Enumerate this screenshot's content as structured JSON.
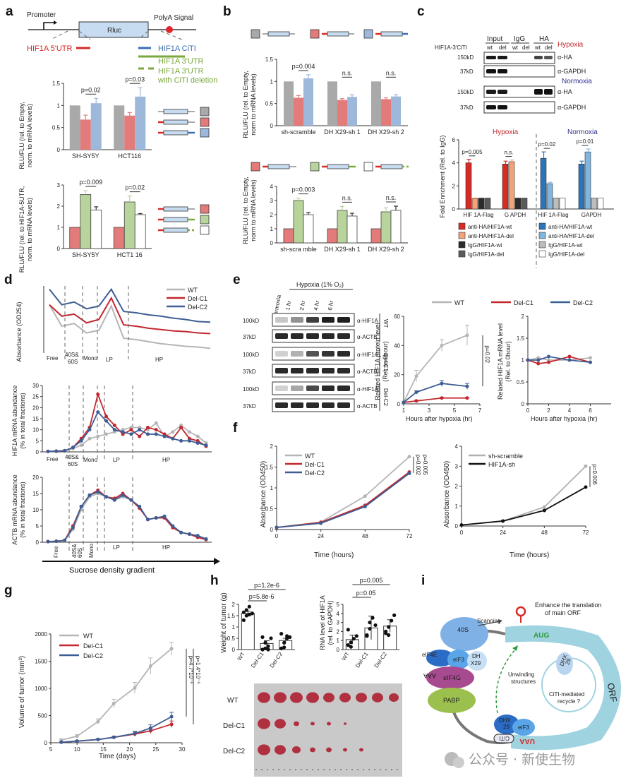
{
  "panels": {
    "a": "a",
    "b": "b",
    "c": "c",
    "d": "d",
    "e": "e",
    "f": "f",
    "g": "g",
    "h": "h",
    "i": "i"
  },
  "colors": {
    "gray": "#a9a9a9",
    "red": "#e37b7b",
    "blue": "#9db8db",
    "green": "#b8d49c",
    "white": "#ffffff",
    "line_wt": "#b5b5b5",
    "line_c1": "#c3282e",
    "line_c2": "#3d5e95",
    "c_red_dark": "#d62a25",
    "c_red_light": "#f3a27a",
    "c_black": "#2b2b2b",
    "c_darkgray": "#5a5a5a",
    "c_blue_dark": "#2b75b8",
    "c_blue_light": "#7fb6e0",
    "c_gray": "#bdbdbd"
  },
  "panel_a": {
    "promoter": "Promoter",
    "rluc": "Rluc",
    "polya": "PolyA Signal",
    "utr5": "HIF1A 5'UTR",
    "citi": "HIF1A CiTI",
    "utr3": "HIF1A 3'UTR",
    "utr3_del_1": "HIF1A 3'UTR",
    "utr3_del_2": "with CiTI deletion",
    "top_ylabel_1": "RLU/FLU (rel. to Empty,",
    "top_ylabel_2": "norm. to mRNA levels)",
    "bot_ylabel_1": "RLU/FLU (rel. to HIF1A-5UTR,",
    "bot_ylabel_2": "norm. to mRNA levels)"
  },
  "panel_b": {
    "top_ylabel_1": "RLU/FLU (rel. to Empty,",
    "top_ylabel_2": "norm to mRNA levels)",
    "bot_ylabel_1": "RLU/FLU (rel. to Empty,",
    "bot_ylabel_2": "norm to mRNA levels)"
  },
  "panel_c": {
    "input": "Input",
    "igg": "IgG",
    "ha": "HA",
    "row_label": "HIF1A-3'CiTI",
    "wt": "wt",
    "del": "del",
    "hypoxia": "Hypoxia",
    "normoxia": "Normoxia",
    "mw150": "150kD",
    "mw37": "37kD",
    "aha": "α-HA",
    "agapdh": "α-GAPDH",
    "ylabel": "Fold Enrichment (Rel. to IgG)",
    "chart_hypoxia": "Hypoxia",
    "chart_normoxia": "Normoxia",
    "legend": [
      "anti-HA/HIF1A-wt",
      "anti-HA/HIF1A-del",
      "IgG/HIF1A-wt",
      "IgG/HIF1A-del",
      "anti-HA/HIF1A-wt",
      "anti-HA/HIF1A-del",
      "IgG/HIF1A-wt",
      "IgG/HIF1A-del"
    ]
  },
  "panel_d": {
    "legend": [
      "WT",
      "Del-C1",
      "Del-C2"
    ],
    "abs_ylabel": "Absorbance (OD254)",
    "fr": [
      "Free",
      "40S&",
      "60S",
      "Mono",
      "LP",
      "HP"
    ],
    "hif_ylabel_1": "HIF1A mRNA abundance",
    "hif_ylabel_2": "(% in total fractions)",
    "actb_ylabel_1": "ACTB mRNA abundance",
    "actb_ylabel_2": "(% in total fractions)",
    "xlabel": "Sucrose density gradient"
  },
  "panel_e": {
    "normoxia": "Normoxia",
    "hypoxia": "Hypoxia (1% O₂)",
    "times": [
      "1 hr",
      "2 hr",
      "4 hr",
      "6 hr"
    ],
    "mw100": "100kD",
    "mw37": "37kD",
    "ahif": "α-HIF1A",
    "aactb": "α-ACTB",
    "groups": [
      "WT",
      "Del-C1",
      "Del-C2"
    ],
    "legend": [
      "WT",
      "Del-C1",
      "Del-C2"
    ],
    "prot_ylabel_1": "Related HIF1A protein level",
    "prot_ylabel_2": "(Rel. to 0hour)",
    "mrna_ylabel_1": "Related HIF1A mRNA level",
    "mrna_ylabel_2": "(Rel. to 0hour)",
    "xlabel": "Hours after hypoxia (hr)",
    "pval": "p=0.02"
  },
  "panel_f": {
    "legend1": [
      "WT",
      "Del-C1",
      "Del-C2"
    ],
    "legend2": [
      "sh-scramble",
      "HIF1A-sh"
    ],
    "ylabel": "Absorbance (OD450)",
    "xlabel": "Time (hours)",
    "p1": "p=0.002",
    "p2": "p=0.005",
    "p3": "p=0.006"
  },
  "panel_g": {
    "legend": [
      "WT",
      "Del-C1",
      "Del-C2"
    ],
    "ylabel": "Volume of tumor (mm³)",
    "xlabel": "Time (days)",
    "p1": "p=4.7*10⁻⁶",
    "p2": "p=1.4*10⁻⁶"
  },
  "panel_h": {
    "p_top": "p=1.2e-6",
    "p_mid": "p=5.8e-6",
    "w_ylabel": "Weight of tumor (g)",
    "groups": [
      "WT",
      "Del-C1",
      "Del-C2"
    ],
    "r_ylabel_1": "RNA level of HIF1A",
    "r_ylabel_2": "(rel. to GAPDH)",
    "rp_top": "p=0.005",
    "rp_mid": "p=0.05",
    "photo_rows": [
      "WT",
      "Del-C1",
      "Del-C2"
    ]
  },
  "panel_i": {
    "enhance_1": "Enhance the translation",
    "enhance_2": "of main ORF",
    "scanning": "Scanning",
    "s40": "40S",
    "eif4e": "eIF4E",
    "eif3": "eIF3",
    "dhx_a": "DH",
    "dhx_b": "X29",
    "eif4g": "eIF4G",
    "pabp": "PABP",
    "aaa": "AAA",
    "unwinding_1": "Unwinding",
    "unwinding_2": "structures",
    "dhx29": "DHX",
    "dhx29_b": "29",
    "recycle": "CiTI-mediated",
    "recycle_2": "recycle ?",
    "citi": "CiTI",
    "aug": "AUG",
    "uaa": "UAA",
    "orf": "ORF"
  },
  "watermark": "公众号 · 新使生物",
  "chart_data": [
    {
      "id": "a_top",
      "type": "bar",
      "ylim": [
        0,
        1.5
      ],
      "yticks": [
        0,
        0.5,
        1,
        1.5
      ],
      "categories": [
        "SH-SY5Y",
        "HCT116"
      ],
      "series": [
        {
          "values": [
            1,
            1
          ]
        },
        {
          "values": [
            0.68,
            0.77
          ]
        },
        {
          "values": [
            1.05,
            1.2
          ]
        }
      ],
      "errors": [
        [
          0,
          0
        ],
        [
          0.1,
          0.07
        ],
        [
          0.11,
          0.2
        ]
      ],
      "annotations": [
        "p=0.02",
        "p=0.03"
      ]
    },
    {
      "id": "a_bot",
      "type": "bar",
      "ylim": [
        0,
        3
      ],
      "yticks": [
        0,
        1,
        2,
        3
      ],
      "categories": [
        "SH-SY5Y",
        "HCT1 16"
      ],
      "series": [
        {
          "values": [
            1,
            1
          ]
        },
        {
          "values": [
            2.55,
            2.2
          ]
        },
        {
          "values": [
            1.82,
            1.6
          ]
        }
      ],
      "errors": [
        [
          0,
          0
        ],
        [
          0.18,
          0.28
        ],
        [
          0.15,
          0.05
        ]
      ],
      "annotations": [
        "p=0.009",
        "p=0.02"
      ]
    },
    {
      "id": "b_top",
      "type": "bar",
      "ylim": [
        0,
        1.5
      ],
      "yticks": [
        0,
        0.5,
        1,
        1.5
      ],
      "categories": [
        "sh-scramble",
        "DH X29-sh 1",
        "DH X29-sh 2"
      ],
      "series": [
        {
          "values": [
            1,
            1,
            1
          ]
        },
        {
          "values": [
            0.63,
            0.58,
            0.6
          ]
        },
        {
          "values": [
            1.07,
            0.65,
            0.66
          ]
        }
      ],
      "errors": [
        [
          0,
          0,
          0
        ],
        [
          0.05,
          0.03,
          0.03
        ],
        [
          0.08,
          0.05,
          0.04
        ]
      ],
      "annotations": [
        "p=0.004",
        "n.s.",
        "n.s."
      ]
    },
    {
      "id": "b_bot",
      "type": "bar",
      "ylim": [
        0,
        4
      ],
      "yticks": [
        0,
        1,
        2,
        3,
        4
      ],
      "categories": [
        "sh-scra mble",
        "DH X29-sh 1",
        "DH X29-sh 2"
      ],
      "series": [
        {
          "values": [
            1,
            1,
            1
          ]
        },
        {
          "values": [
            3.0,
            2.3,
            2.2
          ]
        },
        {
          "values": [
            2.0,
            1.9,
            2.3
          ]
        }
      ],
      "errors": [
        [
          0,
          0,
          0
        ],
        [
          0.17,
          0.28,
          0.28
        ],
        [
          0.15,
          0.2,
          0.3
        ]
      ],
      "annotations": [
        "p=0.003",
        "n.s.",
        "n.s."
      ]
    },
    {
      "id": "c_chart",
      "type": "bar",
      "ylim": [
        0,
        6
      ],
      "yticks": [
        0,
        2,
        4,
        6
      ],
      "categories": [
        "HIF 1A-Flag",
        "G APDH",
        "HIF 1A-Flag",
        "GAPDH"
      ],
      "series": [
        {
          "values": [
            4.0,
            3.9,
            4.4,
            3.9
          ]
        },
        {
          "values": [
            0.9,
            4.1,
            2.2,
            4.95
          ]
        },
        {
          "values": [
            0.95,
            0.95,
            0.95,
            0.95
          ]
        },
        {
          "values": [
            0.95,
            0.95,
            0.95,
            0.95
          ]
        }
      ],
      "errors": [
        [
          0.3,
          0.25,
          0.55,
          0.25
        ],
        [
          0.05,
          0.15,
          0.12,
          0.25
        ],
        [
          0,
          0,
          0,
          0
        ],
        [
          0,
          0,
          0,
          0
        ]
      ],
      "annotations": [
        "p=0.005",
        "n.s.",
        "p=0.02",
        "p=0.01"
      ]
    },
    {
      "id": "d_abs",
      "type": "line",
      "series": [
        {
          "name": "WT",
          "values": [
            0.72,
            0.4,
            0.44,
            0.3,
            0.34,
            0.7,
            0.22,
            0.2,
            0.17,
            0.14,
            0.12,
            0.1,
            0.09,
            0.07
          ]
        },
        {
          "name": "Del-C1",
          "values": [
            0.72,
            0.55,
            0.58,
            0.45,
            0.5,
            0.82,
            0.42,
            0.4,
            0.37,
            0.35,
            0.33,
            0.32,
            0.3,
            0.29
          ]
        },
        {
          "name": "Del-C2",
          "values": [
            0.95,
            0.72,
            0.76,
            0.66,
            0.7,
            0.95,
            0.62,
            0.6,
            0.57,
            0.55,
            0.52,
            0.5,
            0.47,
            0.46
          ]
        }
      ]
    },
    {
      "id": "d_hif",
      "type": "line",
      "ylim": [
        0,
        30
      ],
      "yticks": [
        0,
        5,
        10,
        15,
        20,
        25,
        30
      ],
      "x": [
        1,
        2,
        3,
        4,
        5,
        6,
        7,
        8,
        9,
        10,
        11,
        12,
        13,
        14,
        15,
        16,
        17,
        18,
        19,
        20
      ],
      "series": [
        {
          "name": "WT",
          "values": [
            0.2,
            0.3,
            0.5,
            1.5,
            3,
            6,
            7,
            8,
            9,
            10,
            11,
            11,
            10,
            13,
            7,
            9,
            12,
            9,
            7,
            4
          ]
        },
        {
          "name": "Del-C1",
          "values": [
            0.2,
            0.3,
            0.5,
            2,
            6,
            11,
            26,
            16,
            12,
            8,
            10,
            7,
            11,
            10,
            8,
            6,
            11,
            6,
            5,
            2.5
          ]
        },
        {
          "name": "Del-C2",
          "values": [
            0.2,
            0.3,
            0.5,
            2,
            5,
            10,
            18,
            14,
            10,
            9,
            8,
            10,
            8,
            8,
            7,
            6,
            5,
            5,
            4,
            3
          ]
        }
      ]
    },
    {
      "id": "d_actb",
      "type": "line",
      "ylim": [
        0,
        20
      ],
      "yticks": [
        0,
        5,
        10,
        15,
        20
      ],
      "x": [
        1,
        2,
        3,
        4,
        5,
        6,
        7,
        8,
        9,
        10,
        11,
        12,
        13,
        14,
        15,
        16,
        17,
        18,
        19,
        20
      ],
      "series": [
        {
          "name": "WT",
          "values": [
            0.2,
            0.3,
            0.5,
            4,
            10,
            14,
            15,
            14,
            13,
            14,
            13,
            11,
            7,
            7.5,
            7.5,
            5,
            3,
            2.5,
            2,
            1
          ]
        },
        {
          "name": "Del-C1",
          "values": [
            0.2,
            0.3,
            0.6,
            5,
            11,
            14.5,
            16,
            14,
            13.5,
            15,
            13,
            10.5,
            7,
            7.5,
            7.5,
            4.5,
            3,
            2.5,
            1.5,
            0.8
          ]
        },
        {
          "name": "Del-C2",
          "values": [
            0.2,
            0.3,
            0.6,
            4.5,
            11,
            14.5,
            15.5,
            14,
            13,
            14.5,
            13,
            11,
            7,
            7.5,
            8,
            5,
            3,
            2.5,
            2,
            1
          ]
        }
      ]
    },
    {
      "id": "e_prot",
      "type": "line",
      "xlim": [
        1,
        7
      ],
      "ylim": [
        0,
        60
      ],
      "yticks": [
        0,
        20,
        40,
        60
      ],
      "xticks": [
        1,
        3,
        5,
        7
      ],
      "x": [
        1,
        2,
        4,
        6
      ],
      "series": [
        {
          "name": "WT",
          "values": [
            1,
            19,
            40,
            47
          ]
        },
        {
          "name": "Del-C1",
          "values": [
            1,
            2,
            4,
            4
          ]
        },
        {
          "name": "Del-C2",
          "values": [
            1,
            8,
            14,
            12
          ]
        }
      ],
      "errors": [
        [
          0,
          4,
          4,
          7
        ],
        [
          0,
          0.5,
          0.5,
          0.5
        ],
        [
          0,
          1,
          2,
          2
        ]
      ]
    },
    {
      "id": "e_mrna",
      "type": "line",
      "xlim": [
        0,
        8
      ],
      "ylim": [
        0,
        2
      ],
      "yticks": [
        0,
        0.5,
        1,
        1.5,
        2
      ],
      "xticks": [
        0,
        2,
        4,
        6
      ],
      "x": [
        0,
        1,
        2,
        4,
        6
      ],
      "series": [
        {
          "name": "WT",
          "values": [
            1,
            1.05,
            1.0,
            1.0,
            1.05
          ]
        },
        {
          "name": "Del-C1",
          "values": [
            1,
            0.92,
            0.95,
            1.08,
            0.95
          ]
        },
        {
          "name": "Del-C2",
          "values": [
            1,
            1.0,
            1.08,
            1.0,
            0.95
          ]
        }
      ]
    },
    {
      "id": "f_1",
      "type": "line",
      "xlim": [
        0,
        72
      ],
      "ylim": [
        0,
        2
      ],
      "yticks": [
        0,
        0.5,
        1,
        1.5,
        2
      ],
      "xticks": [
        0,
        24,
        48,
        72
      ],
      "x": [
        0,
        24,
        48,
        72
      ],
      "series": [
        {
          "name": "WT",
          "values": [
            0.05,
            0.18,
            0.8,
            1.75
          ]
        },
        {
          "name": "Del-C1",
          "values": [
            0.05,
            0.17,
            0.58,
            1.38
          ]
        },
        {
          "name": "Del-C2",
          "values": [
            0.05,
            0.15,
            0.55,
            1.35
          ]
        }
      ]
    },
    {
      "id": "f_2",
      "type": "line",
      "xlim": [
        0,
        72
      ],
      "ylim": [
        0,
        4
      ],
      "yticks": [
        0,
        1,
        2,
        3,
        4
      ],
      "xticks": [
        0,
        24,
        48,
        72
      ],
      "x": [
        0,
        24,
        48,
        72
      ],
      "series": [
        {
          "name": "sh-scramble",
          "values": [
            0.05,
            0.25,
            0.95,
            3.0
          ]
        },
        {
          "name": "HIF1A-sh",
          "values": [
            0.05,
            0.25,
            0.78,
            1.95
          ]
        }
      ]
    },
    {
      "id": "g",
      "type": "line",
      "xlim": [
        5,
        30
      ],
      "ylim": [
        0,
        2000
      ],
      "yticks": [
        0,
        500,
        1000,
        1500,
        2000
      ],
      "xticks": [
        5,
        10,
        15,
        20,
        25,
        30
      ],
      "x": [
        7,
        10,
        14,
        17,
        21,
        24,
        28
      ],
      "series": [
        {
          "name": "WT",
          "values": [
            50,
            120,
            390,
            720,
            1010,
            1410,
            1730
          ]
        },
        {
          "name": "Del-C1",
          "values": [
            10,
            30,
            60,
            100,
            160,
            220,
            340
          ]
        },
        {
          "name": "Del-C2",
          "values": [
            10,
            30,
            60,
            100,
            170,
            270,
            480
          ]
        }
      ],
      "errors": [
        [
          20,
          30,
          50,
          80,
          100,
          150,
          120
        ],
        [
          5,
          10,
          15,
          20,
          40,
          50,
          60
        ],
        [
          5,
          10,
          15,
          20,
          40,
          60,
          80
        ]
      ]
    },
    {
      "id": "h_weight",
      "type": "bar",
      "ylim": [
        0,
        2
      ],
      "yticks": [
        0,
        0.5,
        1,
        1.5,
        2
      ],
      "categories": [
        "WT",
        "Del-C1",
        "Del-C2"
      ],
      "values": [
        1.6,
        0.27,
        0.4
      ],
      "errors": [
        0.1,
        0.12,
        0.1
      ],
      "points": [
        [
          1.3,
          1.5,
          1.55,
          1.6,
          1.65,
          1.75,
          1.9,
          1.6
        ],
        [
          0,
          0.05,
          0.15,
          0.5,
          0.55,
          0.3,
          0
        ],
        [
          0.05,
          0.1,
          0.5,
          0.55,
          0.7,
          0.3,
          0.6
        ]
      ]
    },
    {
      "id": "h_rna",
      "type": "bar",
      "ylim": [
        0,
        5
      ],
      "yticks": [
        0,
        1,
        2,
        3,
        4,
        5
      ],
      "categories": [
        "WT",
        "Del-C1",
        "Del-C2"
      ],
      "values": [
        1.1,
        2.4,
        2.6
      ],
      "errors": [
        0.5,
        1.3,
        0.7
      ],
      "points": [
        [
          0.5,
          0.8,
          1.2,
          1.5,
          2.2,
          0.3
        ],
        [
          1.5,
          2.3,
          3.5,
          2.7,
          1.6,
          3.0
        ],
        [
          1.8,
          2.5,
          3.2,
          3.8,
          2.0,
          1.6
        ]
      ]
    }
  ]
}
